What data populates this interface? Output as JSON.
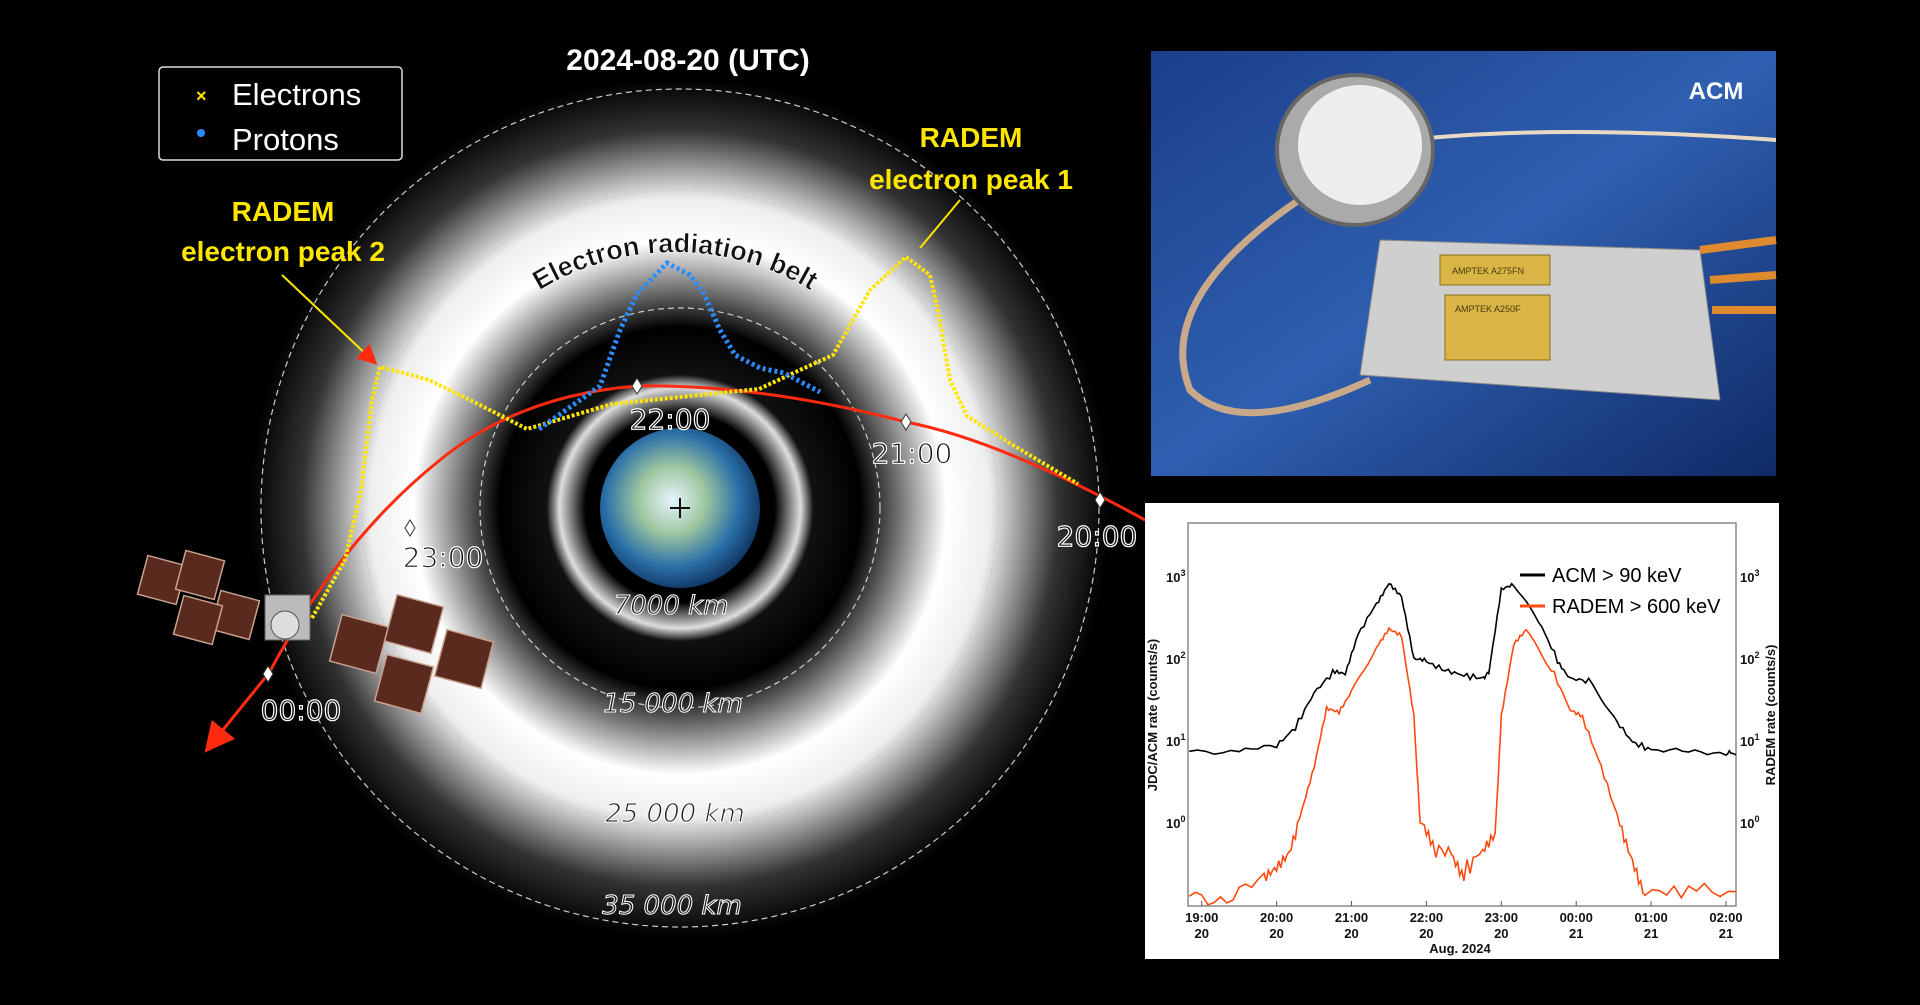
{
  "diagram": {
    "title": "2024-08-20  (UTC)",
    "legend": [
      {
        "label": "Electrons",
        "marker": "x",
        "color": "#ffe600"
      },
      {
        "label": "Protons",
        "marker": "dot",
        "color": "#2a8cff"
      }
    ],
    "peak2_line1": "RADEM",
    "peak2_line2": "electron peak 2",
    "peak1_line1": "RADEM",
    "peak1_line2": "electron peak 1",
    "belt_label": "Electron radiation belt",
    "time_labels": [
      "22:00",
      "21:00",
      "20:00",
      "23:00",
      "00:00"
    ],
    "distance_labels": [
      "7000 km",
      "15 000 km",
      "25 000 km",
      "35 000 km"
    ],
    "colors": {
      "electrons": "#ffe600",
      "protons": "#2a8cff",
      "orbit": "#ff2a10"
    }
  },
  "photo": {
    "label": "ACM",
    "chip1": "AMPTEK A275FN",
    "chip2": "AMPTEK A250F"
  },
  "chart_data": {
    "type": "line",
    "xlabel": "Aug. 2024",
    "ylabel_left": "JDC/ACM rate (counts/s)",
    "ylabel_right": "RADEM rate (counts/s)",
    "y_scale": "log",
    "ylim": [
      0.1,
      4700
    ],
    "xlim": [
      "18:49",
      "02:08"
    ],
    "x_ticks": [
      {
        "time": "19:00",
        "day": "20"
      },
      {
        "time": "20:00",
        "day": "20"
      },
      {
        "time": "21:00",
        "day": "20"
      },
      {
        "time": "22:00",
        "day": "20"
      },
      {
        "time": "23:00",
        "day": "20"
      },
      {
        "time": "00:00",
        "day": "21"
      },
      {
        "time": "01:00",
        "day": "21"
      },
      {
        "time": "02:00",
        "day": "21"
      }
    ],
    "y_ticks": [
      {
        "value": 1,
        "base": "10",
        "exp": "0"
      },
      {
        "value": 10,
        "base": "10",
        "exp": "1"
      },
      {
        "value": 100,
        "base": "10",
        "exp": "2"
      },
      {
        "value": 1000,
        "base": "10",
        "exp": "3"
      }
    ],
    "legend_position": "top-right",
    "grid": false,
    "series": [
      {
        "name": "ACM  > 90 keV",
        "color": "#000000",
        "x": [
          "18:50",
          "19:30",
          "20:00",
          "20:15",
          "20:30",
          "20:45",
          "20:55",
          "21:05",
          "21:20",
          "21:30",
          "21:40",
          "21:50",
          "22:00",
          "22:15",
          "22:30",
          "22:45",
          "22:50",
          "23:00",
          "23:10",
          "23:30",
          "23:45",
          "23:55",
          "00:10",
          "00:30",
          "00:45",
          "01:00",
          "01:30",
          "02:00",
          "02:08"
        ],
        "y": [
          8,
          7.5,
          9,
          15,
          40,
          70,
          65,
          200,
          500,
          900,
          600,
          100,
          95,
          75,
          65,
          60,
          70,
          700,
          800,
          300,
          100,
          60,
          55,
          20,
          10,
          8,
          7.5,
          7.5,
          7
        ]
      },
      {
        "name": "RADEM > 600 keV",
        "color": "#ff4a10",
        "x": [
          "18:50",
          "19:20",
          "19:50",
          "20:00",
          "20:10",
          "20:20",
          "20:30",
          "20:40",
          "20:50",
          "21:00",
          "21:20",
          "21:30",
          "21:40",
          "21:50",
          "21:55",
          "22:05",
          "22:20",
          "22:30",
          "22:45",
          "22:55",
          "23:00",
          "23:10",
          "23:20",
          "23:40",
          "23:55",
          "00:05",
          "00:20",
          "00:35",
          "00:45",
          "00:55",
          "01:30",
          "02:08"
        ],
        "y": [
          0.15,
          0.12,
          0.2,
          0.3,
          0.5,
          1.5,
          5,
          25,
          22,
          40,
          150,
          250,
          200,
          20,
          1,
          0.5,
          0.45,
          0.25,
          0.5,
          0.7,
          20,
          150,
          230,
          80,
          25,
          20,
          5,
          1,
          0.4,
          0.15,
          0.15,
          0.15
        ]
      }
    ]
  }
}
